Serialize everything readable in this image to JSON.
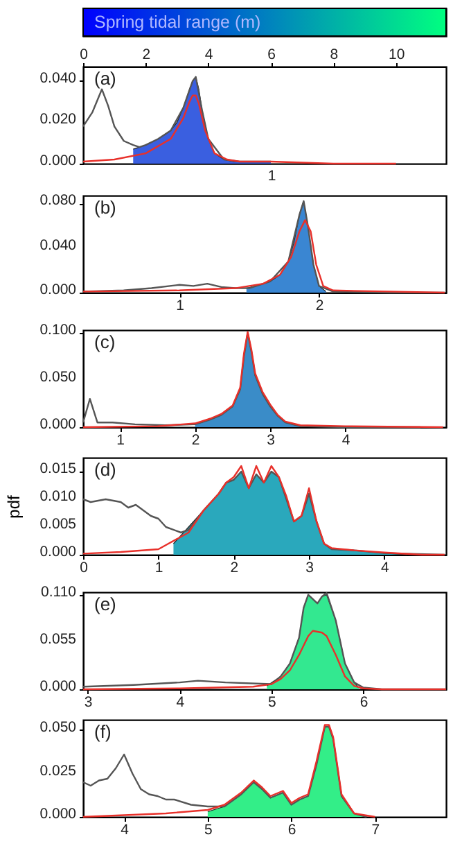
{
  "chart_data": [
    {
      "type": "area",
      "annotations": [
        "(a)",
        "1"
      ],
      "clabel": "Spring tidal range (m)",
      "xlim": [
        0,
        11.6
      ],
      "xticks": [
        0,
        2,
        4,
        6,
        8,
        10
      ],
      "ylim": [
        0,
        0.047
      ],
      "yticks": [
        {
          "value": 0,
          "label": "0.000"
        },
        {
          "value": 0.02,
          "label": "0.020"
        },
        {
          "value": 0.04,
          "label": "0.040"
        }
      ],
      "series": [
        {
          "type": "area",
          "color": "#3a5fe0",
          "x": [
            1.6,
            2.0,
            2.4,
            2.8,
            3.0,
            3.2,
            3.4,
            3.5,
            3.6,
            3.7,
            3.8,
            4.0,
            4.2,
            4.5,
            4.8,
            6.0
          ],
          "values": [
            0.007,
            0.009,
            0.012,
            0.016,
            0.02,
            0.027,
            0.036,
            0.04,
            0.042,
            0.036,
            0.026,
            0.012,
            0.005,
            0.002,
            0.001,
            0.001
          ]
        },
        {
          "type": "line",
          "color": "#555555",
          "x": [
            0,
            0.3,
            0.6,
            0.8,
            1.0,
            1.3,
            1.6,
            1.8,
            2.0,
            2.4,
            2.8,
            3.2,
            3.5,
            3.6,
            3.8,
            4.0,
            4.5,
            5,
            6
          ],
          "values": [
            0.018,
            0.025,
            0.036,
            0.028,
            0.018,
            0.011,
            0.009,
            0.008,
            0.009,
            0.012,
            0.016,
            0.027,
            0.04,
            0.042,
            0.026,
            0.012,
            0.002,
            0.001,
            0.001
          ]
        },
        {
          "type": "line",
          "color": "#e8302a",
          "x": [
            0,
            1,
            2,
            2.8,
            3.2,
            3.4,
            3.5,
            3.6,
            3.7,
            3.9,
            4.2,
            4.6,
            5,
            6,
            8,
            10
          ],
          "values": [
            0.001,
            0.002,
            0.005,
            0.012,
            0.022,
            0.03,
            0.033,
            0.033,
            0.029,
            0.016,
            0.005,
            0.002,
            0.001,
            0.001,
            0,
            0
          ]
        }
      ]
    },
    {
      "type": "area",
      "annotations": [
        "(b)"
      ],
      "xlim": [
        0.31,
        2.91
      ],
      "xticks": [
        1,
        2
      ],
      "ylim": [
        0,
        0.087
      ],
      "yticks": [
        {
          "value": 0,
          "label": "0.000"
        },
        {
          "value": 0.04,
          "label": "0.040"
        },
        {
          "value": 0.08,
          "label": "0.080"
        }
      ],
      "series": [
        {
          "type": "area",
          "color": "#3a86d2",
          "x": [
            1.48,
            1.55,
            1.65,
            1.72,
            1.78,
            1.82,
            1.86,
            1.89,
            1.92,
            1.96,
            2.0,
            2.05
          ],
          "values": [
            0.004,
            0.006,
            0.01,
            0.016,
            0.028,
            0.045,
            0.07,
            0.082,
            0.06,
            0.025,
            0.006,
            0.001
          ]
        },
        {
          "type": "line",
          "color": "#555555",
          "x": [
            0.31,
            0.6,
            0.8,
            1.0,
            1.1,
            1.2,
            1.3,
            1.4,
            1.5,
            1.65,
            1.78,
            1.86,
            1.89,
            1.92,
            1.96,
            2.0,
            2.1,
            2.5,
            2.9
          ],
          "values": [
            0.001,
            0.002,
            0.004,
            0.007,
            0.006,
            0.008,
            0.005,
            0.004,
            0.004,
            0.01,
            0.028,
            0.07,
            0.082,
            0.06,
            0.025,
            0.006,
            0.001,
            0,
            0
          ]
        },
        {
          "type": "line",
          "color": "#e8302a",
          "x": [
            0.31,
            1.0,
            1.4,
            1.6,
            1.72,
            1.8,
            1.86,
            1.9,
            1.94,
            1.98,
            2.03,
            2.1,
            2.5,
            2.9
          ],
          "values": [
            0.001,
            0.002,
            0.004,
            0.008,
            0.016,
            0.032,
            0.055,
            0.065,
            0.055,
            0.025,
            0.006,
            0.002,
            0.001,
            0
          ]
        }
      ]
    },
    {
      "type": "area",
      "annotations": [
        "(c)"
      ],
      "xlim": [
        0.51,
        5.34
      ],
      "xticks": [
        1,
        2,
        3,
        4
      ],
      "ylim": [
        0,
        0.103
      ],
      "yticks": [
        {
          "value": 0,
          "label": "0.000"
        },
        {
          "value": 0.05,
          "label": "0.050"
        },
        {
          "value": 0.1,
          "label": "0.100"
        }
      ],
      "series": [
        {
          "type": "area",
          "color": "#3a8cc8",
          "x": [
            2.0,
            2.2,
            2.35,
            2.5,
            2.6,
            2.65,
            2.7,
            2.75,
            2.8,
            2.9,
            3.0,
            3.1,
            3.2,
            3.4
          ],
          "values": [
            0.003,
            0.008,
            0.013,
            0.022,
            0.04,
            0.075,
            0.1,
            0.08,
            0.055,
            0.035,
            0.022,
            0.012,
            0.005,
            0.001
          ]
        },
        {
          "type": "line",
          "color": "#555555",
          "x": [
            0.51,
            0.6,
            0.7,
            0.9,
            1.2,
            1.6,
            2.0,
            2.2,
            2.35,
            2.5,
            2.6,
            2.65,
            2.7,
            2.75,
            2.8,
            2.9,
            3.0,
            3.1,
            3.2,
            3.4,
            4,
            5
          ],
          "values": [
            0.005,
            0.03,
            0.005,
            0.005,
            0.003,
            0.002,
            0.003,
            0.008,
            0.013,
            0.022,
            0.04,
            0.075,
            0.1,
            0.08,
            0.055,
            0.035,
            0.022,
            0.012,
            0.005,
            0.001,
            0,
            0
          ]
        },
        {
          "type": "line",
          "color": "#e8302a",
          "x": [
            0.51,
            1.5,
            2.0,
            2.2,
            2.35,
            2.5,
            2.6,
            2.65,
            2.7,
            2.75,
            2.8,
            2.9,
            3.0,
            3.1,
            3.2,
            3.4,
            4,
            5.3
          ],
          "values": [
            0,
            0.001,
            0.004,
            0.009,
            0.014,
            0.023,
            0.042,
            0.078,
            0.101,
            0.082,
            0.057,
            0.037,
            0.024,
            0.013,
            0.006,
            0.002,
            0.001,
            0
          ]
        }
      ]
    },
    {
      "type": "area",
      "annotations": [
        "(d)"
      ],
      "ylabel": "pdf",
      "xlim": [
        0,
        4.82
      ],
      "xticks": [
        0,
        1,
        2,
        3,
        4
      ],
      "ylim": [
        0,
        0.0175
      ],
      "yticks": [
        {
          "value": 0,
          "label": "0.000"
        },
        {
          "value": 0.005,
          "label": "0.005"
        },
        {
          "value": 0.01,
          "label": "0.010"
        },
        {
          "value": 0.015,
          "label": "0.015"
        }
      ],
      "series": [
        {
          "type": "area",
          "color": "#2aa8bc",
          "x": [
            1.2,
            1.4,
            1.6,
            1.8,
            1.9,
            2.0,
            2.1,
            2.2,
            2.3,
            2.4,
            2.5,
            2.6,
            2.7,
            2.8,
            2.9,
            3.0,
            3.1,
            3.2,
            3.3,
            3.6,
            4.0,
            4.3
          ],
          "values": [
            0.002,
            0.005,
            0.008,
            0.011,
            0.013,
            0.0135,
            0.015,
            0.012,
            0.0145,
            0.013,
            0.015,
            0.014,
            0.01,
            0.006,
            0.007,
            0.011,
            0.006,
            0.002,
            0.001,
            0.0008,
            0.0003,
            0
          ]
        },
        {
          "type": "line",
          "color": "#555555",
          "x": [
            0,
            0.1,
            0.3,
            0.5,
            0.6,
            0.7,
            0.9,
            1.0,
            1.1,
            1.3,
            1.4,
            1.6,
            1.8,
            1.9,
            2.0,
            2.1,
            2.2,
            2.3,
            2.4,
            2.5,
            2.6,
            2.7,
            2.8,
            2.9,
            3.0,
            3.1,
            3.2,
            3.3,
            3.6,
            4.0,
            4.8
          ],
          "values": [
            0.01,
            0.0095,
            0.01,
            0.0095,
            0.0085,
            0.009,
            0.007,
            0.0065,
            0.005,
            0.004,
            0.0045,
            0.008,
            0.011,
            0.013,
            0.0135,
            0.015,
            0.012,
            0.0145,
            0.013,
            0.015,
            0.014,
            0.01,
            0.006,
            0.007,
            0.011,
            0.006,
            0.002,
            0.001,
            0.0008,
            0.0003,
            0
          ]
        },
        {
          "type": "line",
          "color": "#e8302a",
          "x": [
            0,
            0.5,
            1.0,
            1.4,
            1.6,
            1.8,
            1.9,
            2.0,
            2.1,
            2.2,
            2.3,
            2.4,
            2.5,
            2.6,
            2.7,
            2.8,
            2.9,
            3.0,
            3.1,
            3.2,
            3.3,
            3.6,
            4.0,
            4.5,
            4.8
          ],
          "values": [
            0.0002,
            0.0005,
            0.001,
            0.004,
            0.008,
            0.011,
            0.013,
            0.014,
            0.016,
            0.012,
            0.016,
            0.013,
            0.016,
            0.014,
            0.0105,
            0.006,
            0.007,
            0.012,
            0.006,
            0.002,
            0.0012,
            0.0008,
            0.0004,
            0,
            0
          ]
        }
      ]
    },
    {
      "type": "area",
      "annotations": [
        "(e)"
      ],
      "xlim": [
        2.95,
        6.9
      ],
      "xticks": [
        3,
        4,
        5,
        6
      ],
      "ylim": [
        0,
        0.113
      ],
      "yticks": [
        {
          "value": 0,
          "label": "0.000"
        },
        {
          "value": 0.055,
          "label": "0.055"
        },
        {
          "value": 0.11,
          "label": "0.110"
        }
      ],
      "series": [
        {
          "type": "area",
          "color": "#33e890",
          "x": [
            4.95,
            5.1,
            5.2,
            5.3,
            5.35,
            5.4,
            5.5,
            5.55,
            5.6,
            5.7,
            5.8,
            5.9,
            5.95
          ],
          "values": [
            0.004,
            0.015,
            0.03,
            0.06,
            0.095,
            0.11,
            0.1,
            0.108,
            0.11,
            0.08,
            0.03,
            0.008,
            0.002
          ]
        },
        {
          "type": "line",
          "color": "#555555",
          "x": [
            2.95,
            3.5,
            4.0,
            4.2,
            4.5,
            5.0,
            5.1,
            5.2,
            5.3,
            5.35,
            5.4,
            5.5,
            5.55,
            5.6,
            5.7,
            5.8,
            5.9,
            6.0,
            6.2,
            6.9
          ],
          "values": [
            0.003,
            0.005,
            0.008,
            0.01,
            0.008,
            0.006,
            0.015,
            0.03,
            0.06,
            0.095,
            0.11,
            0.1,
            0.108,
            0.112,
            0.08,
            0.03,
            0.008,
            0.002,
            0,
            0
          ]
        },
        {
          "type": "line",
          "color": "#e8302a",
          "x": [
            2.95,
            4,
            4.8,
            5.0,
            5.1,
            5.2,
            5.3,
            5.4,
            5.45,
            5.55,
            5.6,
            5.7,
            5.8,
            5.9,
            6.0,
            6.2,
            6.9
          ],
          "values": [
            0,
            0.001,
            0.003,
            0.006,
            0.012,
            0.022,
            0.04,
            0.062,
            0.068,
            0.066,
            0.062,
            0.04,
            0.015,
            0.004,
            0.001,
            0,
            0
          ]
        }
      ]
    },
    {
      "type": "area",
      "annotations": [
        "(f)"
      ],
      "xlim": [
        3.51,
        7.85
      ],
      "xticks": [
        4,
        5,
        6,
        7
      ],
      "ylim": [
        0,
        0.056
      ],
      "yticks": [
        {
          "value": 0,
          "label": "0.000"
        },
        {
          "value": 0.025,
          "label": "0.025"
        },
        {
          "value": 0.05,
          "label": "0.050"
        }
      ],
      "series": [
        {
          "type": "area",
          "color": "#33ee88",
          "x": [
            5.0,
            5.2,
            5.4,
            5.55,
            5.65,
            5.75,
            5.9,
            6.0,
            6.1,
            6.2,
            6.3,
            6.4,
            6.45,
            6.5,
            6.6,
            6.75,
            6.9
          ],
          "values": [
            0.003,
            0.006,
            0.013,
            0.02,
            0.016,
            0.011,
            0.014,
            0.007,
            0.01,
            0.012,
            0.03,
            0.052,
            0.052,
            0.045,
            0.012,
            0.002,
            0
          ]
        },
        {
          "type": "line",
          "color": "#555555",
          "x": [
            3.51,
            3.6,
            3.7,
            3.8,
            3.9,
            4.0,
            4.1,
            4.2,
            4.3,
            4.4,
            4.5,
            4.6,
            4.8,
            5.0,
            5.2,
            5.4,
            5.55,
            5.65,
            5.75,
            5.9,
            6.0,
            6.1,
            6.2,
            6.3,
            6.4,
            6.45,
            6.5,
            6.6,
            6.75,
            6.9
          ],
          "values": [
            0.02,
            0.018,
            0.021,
            0.022,
            0.028,
            0.036,
            0.025,
            0.016,
            0.013,
            0.012,
            0.01,
            0.01,
            0.007,
            0.006,
            0.006,
            0.013,
            0.02,
            0.016,
            0.011,
            0.014,
            0.007,
            0.01,
            0.012,
            0.03,
            0.052,
            0.052,
            0.045,
            0.012,
            0.002,
            0
          ]
        },
        {
          "type": "line",
          "color": "#e8302a",
          "x": [
            3.51,
            4.5,
            5.0,
            5.2,
            5.4,
            5.55,
            5.65,
            5.75,
            5.9,
            6.0,
            6.1,
            6.2,
            6.3,
            6.4,
            6.45,
            6.5,
            6.6,
            6.75,
            7.0
          ],
          "values": [
            0,
            0.002,
            0.004,
            0.007,
            0.014,
            0.021,
            0.017,
            0.012,
            0.015,
            0.008,
            0.011,
            0.013,
            0.032,
            0.053,
            0.053,
            0.046,
            0.013,
            0.002,
            0
          ]
        }
      ]
    }
  ]
}
